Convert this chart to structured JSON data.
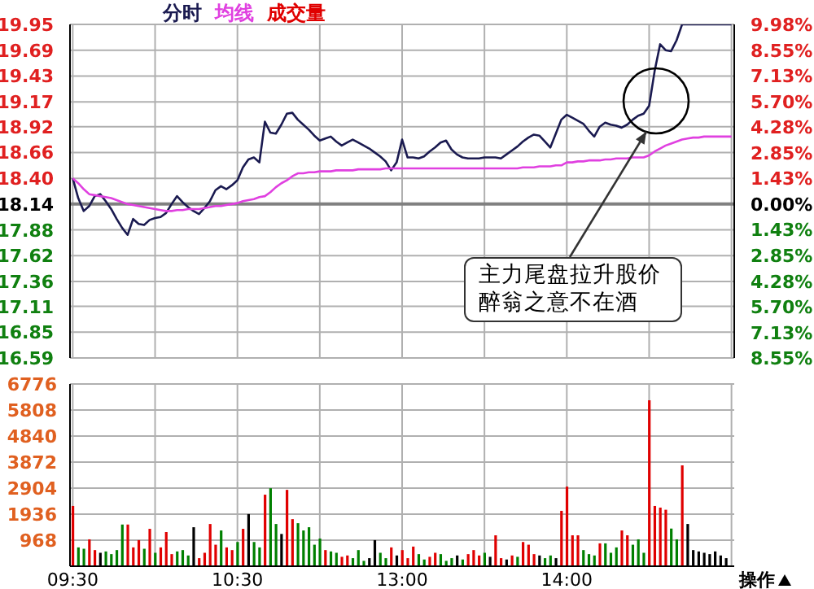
{
  "chart_data": [
    {
      "type": "line",
      "legend": "top left",
      "grid": true,
      "marker": "none",
      "line_style": "solid",
      "tick_labels": "y",
      "categories": [
        null,
        null,
        null,
        null,
        null,
        null,
        null,
        null,
        null,
        null,
        null,
        null,
        null,
        null,
        null,
        null,
        null,
        null,
        null,
        null,
        null,
        null,
        null,
        null,
        null,
        null,
        null,
        null,
        null,
        null,
        null,
        null,
        null,
        null,
        null,
        null,
        null,
        null,
        null,
        null,
        null,
        null,
        null,
        null,
        null,
        null,
        null,
        null,
        null,
        null,
        null,
        null,
        null,
        null,
        null,
        null,
        null,
        null,
        null,
        null,
        null,
        null,
        null,
        null,
        null,
        null,
        null,
        null,
        null,
        null,
        null,
        null,
        null,
        null,
        null,
        null,
        null,
        null,
        null,
        null,
        null,
        null,
        null,
        null,
        null,
        null,
        null,
        null,
        null,
        null,
        null,
        null,
        null,
        null,
        null,
        null,
        null,
        null,
        null,
        null,
        null,
        null,
        null,
        null,
        null,
        null,
        null,
        null,
        null,
        null,
        null,
        null,
        null,
        null,
        null,
        null,
        null,
        null,
        null,
        null,
        null
      ],
      "ylim": [
        16.59,
        19.95
      ],
      "yticks": [
        19.95,
        19.69,
        19.43,
        19.17,
        18.92,
        18.66,
        {
          "value": 18.4,
          "label": "18.40"
        },
        18.14,
        17.88,
        17.62,
        17.36,
        17.11,
        16.85,
        16.59
      ],
      "y2lim": [
        -8.55,
        9.98
      ],
      "y2ticks": [
        {
          "value": 9.98,
          "label": "9.98%"
        },
        {
          "value": 8.55,
          "label": "8.55%"
        },
        {
          "value": 7.13,
          "label": "7.13%"
        },
        {
          "value": 5.7,
          "label": "5.70%"
        },
        {
          "value": 4.28,
          "label": "4.28%"
        },
        {
          "value": 2.85,
          "label": "2.85%"
        },
        {
          "value": 1.43,
          "label": "1.43%"
        },
        {
          "value": 0,
          "label": "0.00%"
        },
        {
          "value": -1.43,
          "label": "1.43%"
        },
        {
          "value": -2.85,
          "label": "2.85%"
        },
        {
          "value": -4.28,
          "label": "4.28%"
        },
        {
          "value": -5.7,
          "label": "5.70%"
        },
        {
          "value": -7.13,
          "label": "7.13%"
        },
        {
          "value": -8.55,
          "label": "8.55%"
        }
      ],
      "ref_lines": [
        {
          "axis": "y",
          "value": 18.14,
          "color": "#808080"
        }
      ],
      "annotations": [
        "主力尾盘拉升股价醉翁之意不在酒"
      ],
      "series": [
        {
          "name": "分时",
          "color": "#1a1a50",
          "values": [
            18.4,
            18.2,
            18.07,
            18.12,
            18.22,
            18.24,
            18.17,
            18.09,
            17.99,
            17.9,
            17.83,
            17.99,
            17.94,
            17.93,
            17.98,
            18.0,
            18.01,
            18.05,
            18.14,
            18.22,
            18.16,
            18.11,
            18.07,
            18.04,
            18.1,
            18.17,
            18.28,
            18.32,
            18.29,
            18.33,
            18.38,
            18.51,
            18.59,
            18.61,
            18.56,
            18.97,
            18.86,
            18.85,
            18.94,
            19.05,
            19.06,
            18.99,
            18.94,
            18.89,
            18.83,
            18.78,
            18.8,
            18.82,
            18.77,
            18.73,
            18.76,
            18.79,
            18.76,
            18.73,
            18.7,
            18.66,
            18.62,
            18.57,
            18.48,
            18.56,
            18.79,
            18.61,
            18.61,
            18.6,
            18.62,
            18.67,
            18.71,
            18.76,
            18.78,
            18.69,
            18.64,
            18.61,
            18.6,
            18.6,
            18.6,
            18.61,
            18.61,
            18.61,
            18.6,
            18.64,
            18.68,
            18.72,
            18.77,
            18.81,
            18.84,
            18.83,
            18.77,
            18.71,
            18.85,
            18.99,
            19.04,
            19.01,
            18.98,
            18.95,
            18.88,
            18.82,
            18.92,
            18.96,
            18.94,
            18.93,
            18.91,
            18.94,
            18.99,
            19.03,
            19.05,
            19.13,
            19.48,
            19.75,
            19.69,
            19.68,
            19.79,
            19.95,
            19.95,
            19.95,
            19.95,
            19.95,
            19.95,
            19.95,
            19.95,
            19.95,
            19.95
          ]
        },
        {
          "name": "均线",
          "color": "#e040e0",
          "values": [
            18.4,
            18.35,
            18.29,
            18.24,
            18.23,
            18.22,
            18.21,
            18.2,
            18.18,
            18.16,
            18.14,
            18.13,
            18.12,
            18.11,
            18.1,
            18.09,
            18.08,
            18.07,
            18.07,
            18.08,
            18.08,
            18.09,
            18.09,
            18.09,
            18.1,
            18.11,
            18.12,
            18.12,
            18.13,
            18.14,
            18.15,
            18.17,
            18.18,
            18.19,
            18.21,
            18.22,
            18.26,
            18.31,
            18.35,
            18.38,
            18.42,
            18.45,
            18.45,
            18.46,
            18.46,
            18.47,
            18.47,
            18.47,
            18.48,
            18.48,
            18.48,
            18.48,
            18.49,
            18.49,
            18.49,
            18.49,
            18.49,
            18.5,
            18.5,
            18.5,
            18.5,
            18.5,
            18.5,
            18.5,
            18.5,
            18.5,
            18.5,
            18.5,
            18.5,
            18.5,
            18.5,
            18.5,
            18.5,
            18.5,
            18.5,
            18.5,
            18.5,
            18.5,
            18.5,
            18.5,
            18.5,
            18.5,
            18.51,
            18.51,
            18.51,
            18.52,
            18.52,
            18.52,
            18.53,
            18.53,
            18.56,
            18.56,
            18.57,
            18.57,
            18.58,
            18.58,
            18.58,
            18.59,
            18.59,
            18.6,
            18.6,
            18.6,
            18.61,
            18.61,
            18.61,
            18.63,
            18.67,
            18.7,
            18.73,
            18.75,
            18.77,
            18.79,
            18.8,
            18.81,
            18.81,
            18.82,
            18.82,
            18.82,
            18.82,
            18.82,
            18.82
          ]
        }
      ]
    },
    {
      "type": "bar",
      "legend": "top left",
      "grid": true,
      "categories": [
        "09:30",
        null,
        null,
        null,
        null,
        null,
        null,
        null,
        null,
        null,
        null,
        null,
        null,
        null,
        null,
        null,
        null,
        null,
        null,
        null,
        null,
        null,
        null,
        null,
        null,
        null,
        null,
        null,
        null,
        null,
        "10:30",
        null,
        null,
        null,
        null,
        null,
        null,
        null,
        null,
        null,
        null,
        null,
        null,
        null,
        null,
        null,
        null,
        null,
        null,
        null,
        null,
        null,
        null,
        null,
        null,
        null,
        null,
        null,
        null,
        null,
        "13:00",
        null,
        null,
        null,
        null,
        null,
        null,
        null,
        null,
        null,
        null,
        null,
        null,
        null,
        null,
        null,
        null,
        null,
        null,
        null,
        null,
        null,
        null,
        null,
        null,
        null,
        null,
        null,
        null,
        null,
        "14:00",
        null,
        null,
        null,
        null,
        null,
        null,
        null,
        null,
        null,
        null,
        null,
        null,
        null,
        null,
        null,
        null,
        null,
        null,
        null,
        null,
        null,
        null,
        null,
        null,
        null,
        null,
        null,
        null,
        null,
        null
      ],
      "ylim": [
        0,
        6776
      ],
      "yticks": [
        968,
        1936,
        2904,
        3872,
        4840,
        5808,
        6776
      ],
      "annotations": [
        "操作"
      ],
      "series": [
        {
          "name": "成交量",
          "color": "#e00000",
          "values": [
            2240,
            700,
            650,
            1000,
            600,
            500,
            550,
            450,
            600,
            1550,
            1550,
            700,
            970,
            650,
            1390,
            500,
            700,
            1270,
            450,
            550,
            600,
            400,
            1450,
            300,
            500,
            1570,
            800,
            1330,
            700,
            600,
            900,
            1390,
            1940,
            900,
            700,
            2660,
            2900,
            1570,
            1200,
            2840,
            1750,
            1600,
            1330,
            1450,
            800,
            1030,
            600,
            550,
            500,
            350,
            400,
            300,
            600,
            200,
            300,
            970,
            500,
            300,
            700,
            400,
            600,
            300,
            730,
            450,
            250,
            350,
            500,
            450,
            200,
            300,
            400,
            250,
            450,
            600,
            400,
            500,
            350,
            1150,
            300,
            250,
            400,
            350,
            900,
            800,
            450,
            400,
            300,
            400,
            300,
            2060,
            2960,
            1150,
            1150,
            600,
            450,
            400,
            850,
            850,
            500,
            700,
            1330,
            1150,
            800,
            1000,
            500,
            6170,
            2240,
            2180,
            2100,
            1400,
            1000,
            3750,
            1570,
            600,
            550,
            500,
            450,
            550,
            400,
            300,
            null
          ],
          "colors": [
            "#e00000",
            "#008000",
            "#008000",
            "#e00000",
            "#e00000",
            "#000000",
            "#008000",
            "#008000",
            "#008000",
            "#008000",
            "#e00000",
            "#e00000",
            "#e00000",
            "#008000",
            "#e00000",
            "#008000",
            "#e00000",
            "#e00000",
            "#e00000",
            "#008000",
            "#008000",
            "#008000",
            "#000000",
            "#e00000",
            "#e00000",
            "#e00000",
            "#e00000",
            "#008000",
            "#e00000",
            "#e00000",
            "#008000",
            "#e00000",
            "#000000",
            "#008000",
            "#008000",
            "#e00000",
            "#008000",
            "#008000",
            "#000000",
            "#e00000",
            "#e00000",
            "#008000",
            "#008000",
            "#008000",
            "#008000",
            "#008000",
            "#e00000",
            "#008000",
            "#008000",
            "#e00000",
            "#e00000",
            "#008000",
            "#008000",
            "#008000",
            "#000000",
            "#000000",
            "#008000",
            "#008000",
            "#e00000",
            "#000000",
            "#e00000",
            "#e00000",
            "#e00000",
            "#008000",
            "#008000",
            "#e00000",
            "#e00000",
            "#008000",
            "#008000",
            "#008000",
            "#000000",
            "#008000",
            "#e00000",
            "#e00000",
            "#e00000",
            "#008000",
            "#000000",
            "#e00000",
            "#e00000",
            "#000000",
            "#e00000",
            "#008000",
            "#e00000",
            "#e00000",
            "#e00000",
            "#000000",
            "#008000",
            "#008000",
            "#000000",
            "#e00000",
            "#e00000",
            "#e00000",
            "#e00000",
            "#008000",
            "#008000",
            "#008000",
            "#e00000",
            "#008000",
            "#008000",
            "#008000",
            "#e00000",
            "#e00000",
            "#008000",
            "#008000",
            "#008000",
            "#e00000",
            "#e00000",
            "#e00000",
            "#e00000",
            "#008000",
            "#008000",
            "#e00000",
            "#000000",
            "#000000",
            "#000000",
            "#000000",
            "#000000",
            "#000000",
            "#000000",
            "#000000",
            "#000000"
          ]
        }
      ]
    }
  ]
}
